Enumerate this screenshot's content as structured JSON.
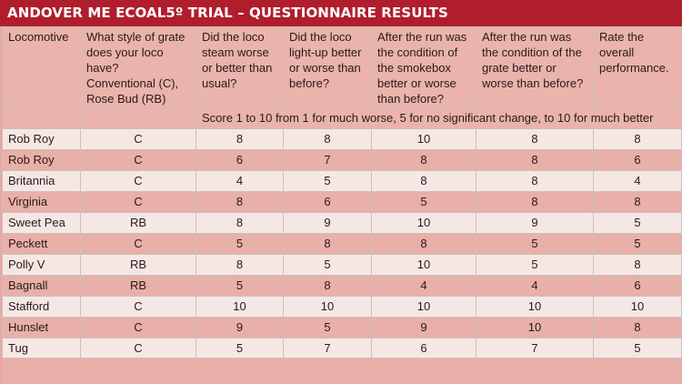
{
  "title": "ANDOVER ME ECOAL5º TRIAL – QUESTIONNAIRE RESULTS",
  "headers": [
    "Locomotive",
    "What style of grate does your loco have? Conventional (C), Rose Bud (RB)",
    "Did the loco steam worse or better than usual?",
    "Did the loco light-up better or worse than before?",
    "After the run was the condition of the smokebox better or worse than before?",
    "After the run was the condition of the grate better or worse than before?",
    "Rate the overall performance."
  ],
  "scale_note": "Score 1 to 10 from 1 for much worse, 5 for no significant change, to 10 for much better",
  "rows": [
    [
      "Rob Roy",
      "C",
      "8",
      "8",
      "10",
      "8",
      "8"
    ],
    [
      "Rob Roy",
      "C",
      "6",
      "7",
      "8",
      "8",
      "6"
    ],
    [
      "Britannia",
      "C",
      "4",
      "5",
      "8",
      "8",
      "4"
    ],
    [
      "Virginia",
      "C",
      "8",
      "6",
      "5",
      "8",
      "8"
    ],
    [
      "Sweet Pea",
      "RB",
      "8",
      "9",
      "10",
      "9",
      "5"
    ],
    [
      "Peckett",
      "C",
      "5",
      "8",
      "8",
      "5",
      "5"
    ],
    [
      "Polly V",
      "RB",
      "8",
      "5",
      "10",
      "5",
      "8"
    ],
    [
      "Bagnall",
      "RB",
      "5",
      "8",
      "4",
      "4",
      "6"
    ],
    [
      "Stafford",
      "C",
      "10",
      "10",
      "10",
      "10",
      "10"
    ],
    [
      "Hunslet",
      "C",
      "9",
      "5",
      "9",
      "10",
      "8"
    ],
    [
      "Tug",
      "C",
      "5",
      "7",
      "6",
      "7",
      "5"
    ]
  ]
}
